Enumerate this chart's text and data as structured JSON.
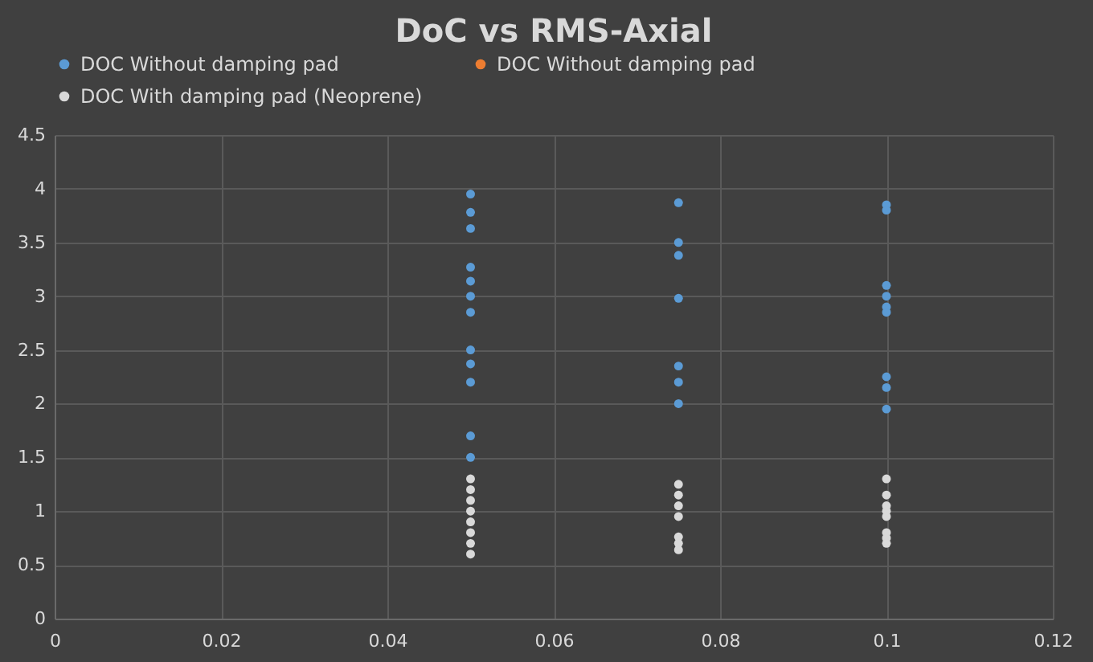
{
  "chart_data": {
    "type": "scatter",
    "title": "DoC vs RMS-Axial",
    "series": [
      {
        "name": "DOC Without damping pad",
        "color": "#5b9bd5",
        "x": [
          0.05,
          0.05,
          0.05,
          0.05,
          0.05,
          0.05,
          0.05,
          0.05,
          0.05,
          0.05,
          0.05,
          0.05,
          0.075,
          0.075,
          0.075,
          0.075,
          0.075,
          0.075,
          0.075,
          0.1,
          0.1,
          0.1,
          0.1,
          0.1,
          0.1,
          0.1,
          0.1,
          0.1
        ],
        "values": [
          3.95,
          3.78,
          3.63,
          3.27,
          3.14,
          3.0,
          2.85,
          2.5,
          2.37,
          2.2,
          1.7,
          1.5,
          3.87,
          3.5,
          3.38,
          2.98,
          2.35,
          2.2,
          2.0,
          3.85,
          3.8,
          3.1,
          3.0,
          2.9,
          2.85,
          2.25,
          2.15,
          1.95
        ]
      },
      {
        "name": "DOC Without damping pad",
        "color": "#ed7d31"
      },
      {
        "name": "DOC With damping pad (Neoprene)",
        "color": "#d9d9d9",
        "x": [
          0.05,
          0.05,
          0.05,
          0.05,
          0.05,
          0.05,
          0.05,
          0.05,
          0.075,
          0.075,
          0.075,
          0.075,
          0.075,
          0.075,
          0.075,
          0.1,
          0.1,
          0.1,
          0.1,
          0.1,
          0.1,
          0.1,
          0.1
        ],
        "values": [
          1.3,
          1.2,
          1.1,
          1.0,
          0.9,
          0.8,
          0.7,
          0.6,
          1.25,
          1.15,
          1.05,
          0.95,
          0.76,
          0.7,
          0.64,
          1.3,
          1.15,
          1.05,
          1.0,
          0.95,
          0.8,
          0.75,
          0.7
        ]
      }
    ],
    "xlim": [
      0,
      0.12
    ],
    "xticks": [
      0,
      0.02,
      0.04,
      0.06,
      0.08,
      0.1,
      0.12
    ],
    "ylim": [
      0,
      4.5
    ],
    "yticks": [
      0,
      0.5,
      1,
      1.5,
      2,
      2.5,
      3,
      3.5,
      4,
      4.5
    ],
    "grid": true,
    "legend": "top",
    "marker": "circle"
  }
}
